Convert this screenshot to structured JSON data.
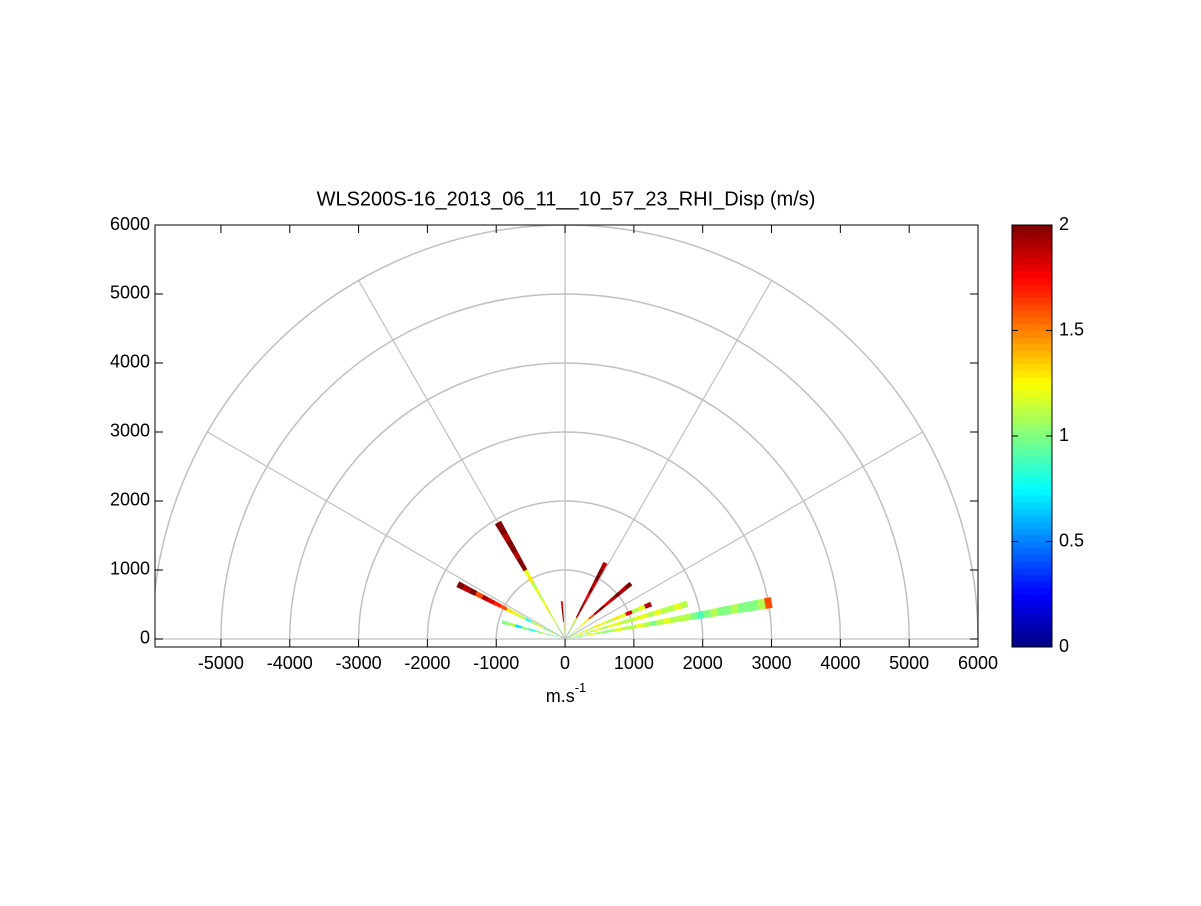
{
  "chart_data": {
    "type": "polar-rhi",
    "title": "WLS200S-16_2013_06_11__10_57_23_RHI_Disp (m/s)",
    "xlabel": "m.s",
    "xlabel_exponent": "-1",
    "xlim": [
      -5958,
      6000
    ],
    "ylim": [
      -116,
      6000
    ],
    "xticks": [
      -5000,
      -4000,
      -3000,
      -2000,
      -1000,
      0,
      1000,
      2000,
      3000,
      4000,
      5000,
      6000
    ],
    "yticks": [
      0,
      1000,
      2000,
      3000,
      4000,
      5000,
      6000
    ],
    "grid": true,
    "colormap": "jet",
    "clim": [
      0,
      2
    ],
    "cticks": [
      0,
      0.5,
      1,
      1.5,
      2
    ],
    "ranges": [
      100,
      200,
      300,
      400,
      500,
      600,
      700,
      800,
      900,
      1000,
      1100,
      1200,
      1300,
      1400,
      1500,
      1600,
      1700,
      1800,
      1900,
      2000,
      2100,
      2200,
      2300,
      2400,
      2500,
      2600,
      2700,
      2800,
      2900,
      3000
    ],
    "rays": [
      {
        "elevation": 10,
        "values": [
          1.1,
          1.0,
          1.1,
          1.2,
          1.1,
          1.0,
          1.1,
          1.2,
          1.1,
          1.1,
          1.2,
          1.1,
          1.0,
          1.1,
          1.2,
          1.1,
          1.1,
          1.1,
          1.0,
          0.9,
          1.0,
          1.1,
          1.0,
          1.0,
          1.1,
          1.0,
          1.0,
          1.0,
          1.1,
          1.6
        ]
      },
      {
        "elevation": 16,
        "values": [
          1.1,
          1.2,
          1.1,
          1.1,
          1.2,
          1.1,
          1.2,
          1.2,
          1.1,
          1.1,
          1.2,
          1.2,
          1.1,
          1.2,
          1.1,
          1.1,
          1.2,
          1.1,
          null,
          null,
          null,
          null,
          null,
          null,
          null,
          null,
          null,
          null,
          null,
          null
        ]
      },
      {
        "elevation": 22,
        "values": [
          1.0,
          1.1,
          1.2,
          1.1,
          1.3,
          1.2,
          1.1,
          1.3,
          1.2,
          1.8,
          1.1,
          1.2,
          1.9,
          null,
          null,
          null,
          null,
          null,
          null,
          null,
          null,
          null,
          null,
          null,
          null,
          null,
          null,
          null,
          null,
          null
        ]
      },
      {
        "elevation": 40,
        "values": [
          1.0,
          1.1,
          1.2,
          1.3,
          1.6,
          1.9,
          2.0,
          1.8,
          1.9,
          2.0,
          1.9,
          2.0,
          null,
          null,
          null,
          null,
          null,
          null,
          null,
          null,
          null,
          null,
          null,
          null,
          null,
          null,
          null,
          null,
          null,
          null
        ]
      },
      {
        "elevation": 62,
        "values": [
          1.0,
          1.1,
          1.2,
          1.9,
          2.0,
          1.9,
          1.8,
          2.0,
          1.9,
          2.0,
          2.0,
          1.9,
          null,
          null,
          null,
          null,
          null,
          null,
          null,
          null,
          null,
          null,
          null,
          null,
          null,
          null,
          null,
          null,
          null,
          null
        ]
      },
      {
        "elevation": 95,
        "values": [
          1.1,
          1.3,
          1.9,
          2.0,
          1.8,
          null,
          null,
          null,
          null,
          null,
          null,
          null,
          null,
          null,
          null,
          null,
          null,
          null,
          null,
          null,
          null,
          null,
          null,
          null,
          null,
          null,
          null,
          null,
          null,
          null
        ]
      },
      {
        "elevation": 120,
        "values": [
          1.0,
          1.1,
          1.2,
          1.1,
          1.3,
          1.2,
          1.1,
          1.2,
          1.1,
          1.3,
          1.2,
          2.0,
          2.0,
          1.9,
          2.0,
          2.0,
          1.9,
          2.0,
          2.0,
          null,
          null,
          null,
          null,
          null,
          null,
          null,
          null,
          null,
          null,
          null
        ]
      },
      {
        "elevation": 153,
        "values": [
          1.0,
          1.1,
          1.0,
          1.2,
          1.1,
          0.8,
          1.1,
          1.2,
          1.3,
          1.6,
          1.7,
          1.8,
          1.9,
          1.6,
          2.0,
          1.9,
          2.0,
          null,
          null,
          null,
          null,
          null,
          null,
          null,
          null,
          null,
          null,
          null,
          null,
          null
        ]
      },
      {
        "elevation": 165,
        "values": [
          1.0,
          0.9,
          1.1,
          1.0,
          0.8,
          1.0,
          0.7,
          1.1,
          1.0,
          null,
          null,
          null,
          null,
          null,
          null,
          null,
          null,
          null,
          null,
          null,
          null,
          null,
          null,
          null,
          null,
          null,
          null,
          null,
          null,
          null
        ]
      }
    ]
  }
}
